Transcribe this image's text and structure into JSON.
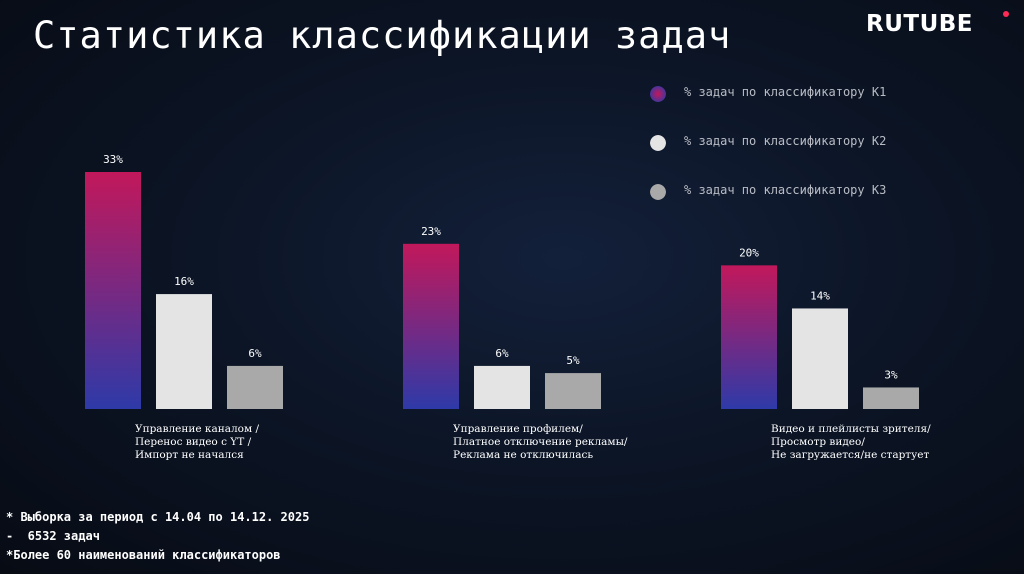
{
  "header": {
    "title": "Статистика классификации задач",
    "logo_text": "RUTUBE"
  },
  "colors": {
    "series_k1_top": "#c2185b",
    "series_k1_bottom": "#2e3aa8",
    "series_k2": "#e4e4e4",
    "series_k3": "#a9a9a9"
  },
  "chart_data": {
    "type": "bar",
    "categories": [
      [
        "Управление каналом /",
        "Перенос видео с YT /",
        "Импорт не начался"
      ],
      [
        "Управление профилем/",
        "Платное отключение рекламы/",
        "Реклама не отключилась"
      ],
      [
        "Видео и плейлисты зрителя/",
        "Просмотр видео/",
        "Не загружается/не стартует"
      ]
    ],
    "series": [
      {
        "name": "% задач по классификатору К1",
        "values": [
          33,
          23,
          20
        ],
        "labels": [
          "33%",
          "23%",
          "20%"
        ]
      },
      {
        "name": "% задач по классификатору К2",
        "values": [
          16,
          6,
          14
        ],
        "labels": [
          "16%",
          "6%",
          "14%"
        ]
      },
      {
        "name": "% задач по классификатору К3",
        "values": [
          6,
          5,
          3
        ],
        "labels": [
          "6%",
          "5%",
          "3%"
        ]
      }
    ],
    "ylim": [
      0,
      33
    ],
    "grid": false,
    "legend_position": "top-right"
  },
  "footnotes": [
    "* Выборка за период с 14.04 по 14.12. 2025",
    "-  6532 задач",
    "*Более 60 наименований классификаторов"
  ]
}
